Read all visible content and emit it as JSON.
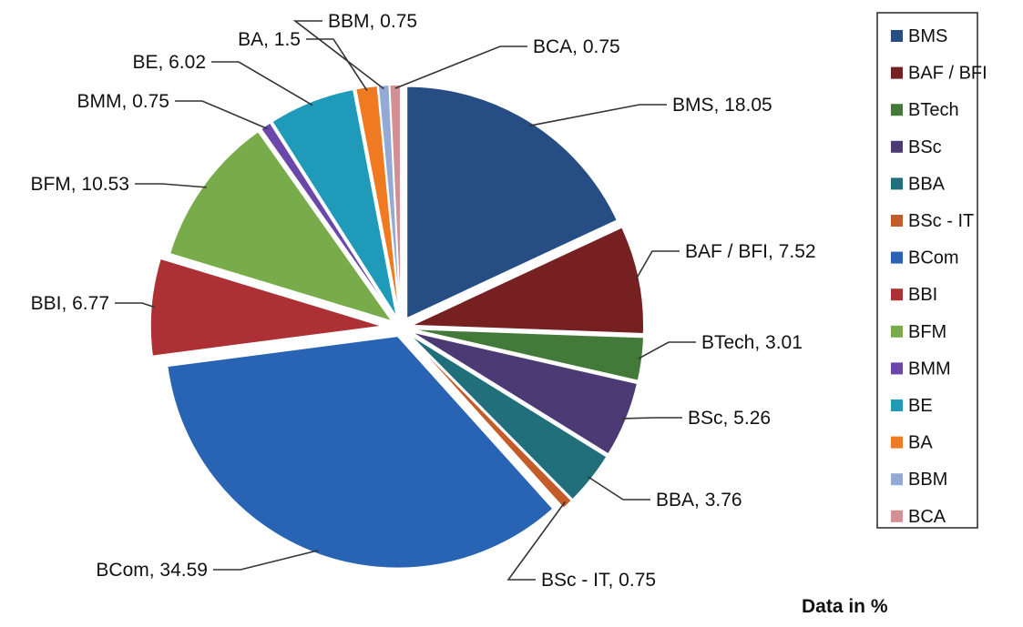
{
  "chart_data": {
    "type": "pie",
    "caption": "Data in %",
    "legend_position": "right",
    "exploded": true,
    "slices": [
      {
        "label": "BMS",
        "value": 18.05,
        "color": "#264e84",
        "data_label": "BMS, 18.05"
      },
      {
        "label": "BAF / BFI",
        "value": 7.52,
        "color": "#762022",
        "data_label": "BAF / BFI, 7.52"
      },
      {
        "label": "BTech",
        "value": 3.01,
        "color": "#437a3a",
        "data_label": "BTech, 3.01"
      },
      {
        "label": "BSc",
        "value": 5.26,
        "color": "#4c3a75",
        "data_label": "BSc, 5.26"
      },
      {
        "label": "BBA",
        "value": 3.76,
        "color": "#216f7b",
        "data_label": "BBA, 3.76"
      },
      {
        "label": "BSc - IT",
        "value": 0.75,
        "color": "#c45c2a",
        "data_label": "BSc - IT, 0.75"
      },
      {
        "label": "BCom",
        "value": 34.59,
        "color": "#2863b4",
        "data_label": "BCom, 34.59"
      },
      {
        "label": "BBI",
        "value": 6.77,
        "color": "#ad3134",
        "data_label": "BBI, 6.77"
      },
      {
        "label": "BFM",
        "value": 10.53,
        "color": "#78ac4b",
        "data_label": "BFM, 10.53"
      },
      {
        "label": "BMM",
        "value": 0.75,
        "color": "#6a47a8",
        "data_label": "BMM, 0.75"
      },
      {
        "label": "BE",
        "value": 6.02,
        "color": "#1f9bb9",
        "data_label": "BE, 6.02"
      },
      {
        "label": "BA",
        "value": 1.5,
        "color": "#f07a22",
        "data_label": "BA, 1.5"
      },
      {
        "label": "BBM",
        "value": 0.75,
        "color": "#93a9d6",
        "data_label": "BBM, 0.75"
      },
      {
        "label": "BCA",
        "value": 0.75,
        "color": "#d38f93",
        "data_label": "BCA, 0.75"
      }
    ]
  }
}
